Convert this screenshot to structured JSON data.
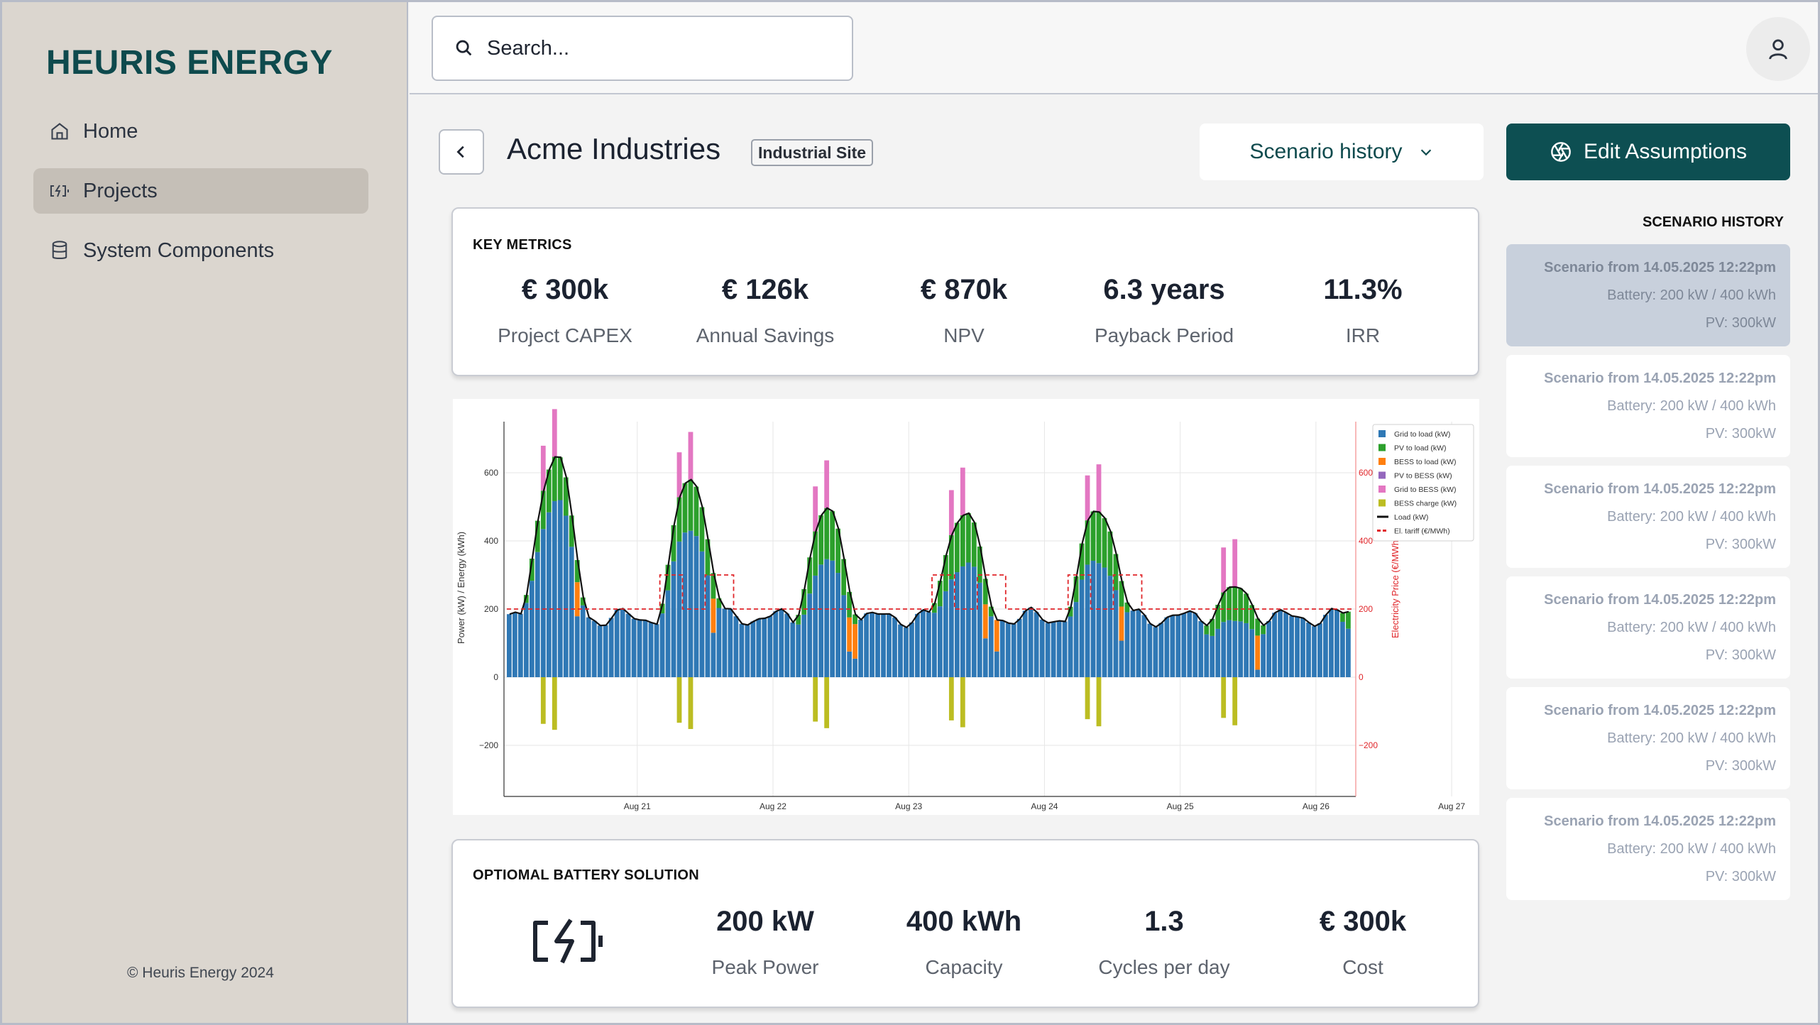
{
  "brand": "HEURIS ENERGY",
  "nav": [
    {
      "label": "Home",
      "icon": "home-icon"
    },
    {
      "label": "Projects",
      "icon": "battery-charging-icon",
      "active": true
    },
    {
      "label": "System Components",
      "icon": "database-icon"
    }
  ],
  "copyright": "© Heuris Energy 2024",
  "search": {
    "placeholder": "Search..."
  },
  "header": {
    "title": "Acme Industries",
    "badge": "Industrial Site",
    "scenario_dropdown": "Scenario history",
    "edit_button": "Edit Assumptions"
  },
  "key_metrics": {
    "title": "KEY METRICS",
    "items": [
      {
        "value": "€ 300k",
        "label": "Project CAPEX"
      },
      {
        "value": "€ 126k",
        "label": "Annual Savings"
      },
      {
        "value": "€ 870k",
        "label": "NPV"
      },
      {
        "value": "6.3 years",
        "label": "Payback Period"
      },
      {
        "value": "11.3%",
        "label": "IRR"
      }
    ]
  },
  "battery": {
    "title": "OPTIOMAL BATTERY SOLUTION",
    "items": [
      {
        "value": "200 kW",
        "label": "Peak Power"
      },
      {
        "value": "400 kWh",
        "label": "Capacity"
      },
      {
        "value": "1.3",
        "label": "Cycles per day"
      },
      {
        "value": "€ 300k",
        "label": "Cost"
      }
    ]
  },
  "history": {
    "title": "SCENARIO HISTORY",
    "items": [
      {
        "title": "Scenario from 14.05.2025 12:22pm",
        "battery": "Battery:  200 kW / 400 kWh",
        "pv": "PV: 300kW",
        "selected": true
      },
      {
        "title": "Scenario from 14.05.2025 12:22pm",
        "battery": "Battery:  200 kW / 400 kWh",
        "pv": "PV: 300kW"
      },
      {
        "title": "Scenario from 14.05.2025 12:22pm",
        "battery": "Battery:  200 kW / 400 kWh",
        "pv": "PV: 300kW"
      },
      {
        "title": "Scenario from 14.05.2025 12:22pm",
        "battery": "Battery:  200 kW / 400 kWh",
        "pv": "PV: 300kW"
      },
      {
        "title": "Scenario from 14.05.2025 12:22pm",
        "battery": "Battery:  200 kW / 400 kWh",
        "pv": "PV: 300kW"
      },
      {
        "title": "Scenario from 14.05.2025 12:22pm",
        "battery": "Battery:  200 kW / 400 kWh",
        "pv": "PV: 300kW"
      }
    ]
  },
  "chart_data": {
    "type": "bar",
    "ylabel": "Power (kW) / Energy (kWh)",
    "y2label": "Electricity Price (€/MWh)",
    "ylim": [
      -350,
      750
    ],
    "y_ticks": [
      -200,
      0,
      200,
      400,
      600
    ],
    "y2_ticks": [
      "-200",
      "0",
      "200",
      "400",
      "600"
    ],
    "x_ticks": [
      "Aug 21",
      "Aug 22",
      "Aug 23",
      "Aug 24",
      "Aug 25",
      "Aug 26",
      "Aug 27"
    ],
    "legend_position": "top-right",
    "grid": true,
    "colors": {
      "grid_to_load": "#2f78b5",
      "pv_to_load": "#2ca02c",
      "bess_to_load": "#ff7f0e",
      "pv_to_bess": "#9467bd",
      "grid_to_bess": "#e377c2",
      "bess_charge": "#bcbd22",
      "load": "#111111",
      "tariff": "#e0262a"
    },
    "series": [
      {
        "name": "Grid to load (kW)",
        "hourly_shape": "base ~190 kW with overnight values ~160-220"
      },
      {
        "name": "PV to load (kW)"
      },
      {
        "name": "BESS to load (kW)"
      },
      {
        "name": "PV to BESS (kW)"
      },
      {
        "name": "Grid to BESS (kW)"
      },
      {
        "name": "BESS charge (kW)"
      },
      {
        "name": "Load (kW)"
      },
      {
        "name": "El. tariff (€/MWh)"
      }
    ],
    "daily_peaks_load": [
      690,
      620,
      510,
      520,
      530,
      270
    ],
    "tariff_levels": [
      200,
      300,
      200,
      300,
      300,
      200
    ]
  }
}
